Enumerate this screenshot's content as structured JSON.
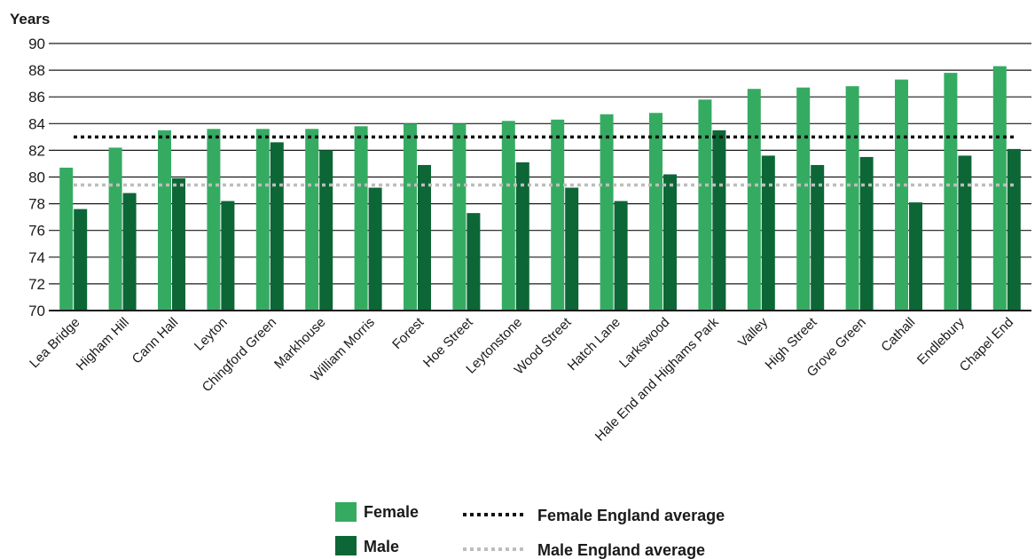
{
  "chart_data": {
    "type": "bar",
    "ylabel": "Years",
    "ylim": [
      70,
      90
    ],
    "yticks": [
      70,
      72,
      74,
      76,
      78,
      80,
      82,
      84,
      86,
      88,
      90
    ],
    "grid": true,
    "categories": [
      "Lea Bridge",
      "Higham Hill",
      "Cann Hall",
      "Leyton",
      "Chingford Green",
      "Markhouse",
      "William Morris",
      "Forest",
      "Hoe Street",
      "Leytonstone",
      "Wood Street",
      "Hatch Lane",
      "Larkswood",
      "Hale End and Highams Park",
      "Valley",
      "High Street",
      "Grove Green",
      "Cathall",
      "Endlebury",
      "Chapel End"
    ],
    "series": [
      {
        "name": "Female",
        "color": "#35ab62",
        "values": [
          80.7,
          82.2,
          83.5,
          83.6,
          83.6,
          83.6,
          83.8,
          84.0,
          84.0,
          84.2,
          84.3,
          84.7,
          84.8,
          85.8,
          86.6,
          86.7,
          86.8,
          87.3,
          87.8,
          88.3
        ]
      },
      {
        "name": "Male",
        "color": "#0d6636",
        "values": [
          77.6,
          78.8,
          79.9,
          78.2,
          82.6,
          82.0,
          79.2,
          80.9,
          77.3,
          81.1,
          79.2,
          78.2,
          80.2,
          83.5,
          81.6,
          80.9,
          81.5,
          78.1,
          81.6,
          82.1
        ]
      }
    ],
    "reference_lines": [
      {
        "name": "Female England average",
        "value": 83.0,
        "color": "#111111",
        "style": "dotted"
      },
      {
        "name": "Male England average",
        "value": 79.4,
        "color": "#bdbdbd",
        "style": "dotted"
      }
    ],
    "legend_position": "bottom-center"
  }
}
